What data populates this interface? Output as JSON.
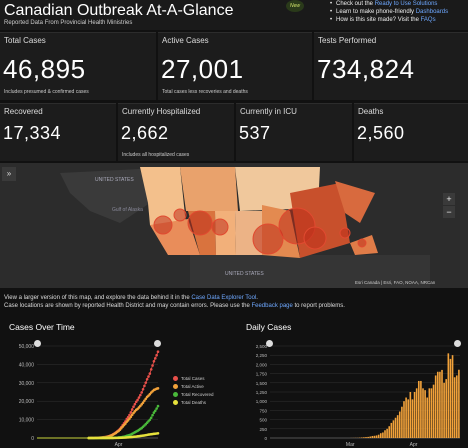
{
  "header": {
    "title": "Canadian Outbreak At-A-Glance",
    "subtitle": "Reported Data From Provincial Health Ministries",
    "new_badge": "New",
    "links": [
      {
        "prefix": "Check out the ",
        "link": "Ready to Use Solutions",
        "suffix": ""
      },
      {
        "prefix": "Learn to make phone-friendly ",
        "link": "Dashboards",
        "suffix": ""
      },
      {
        "prefix": "How is this site made? Visit the ",
        "link": "FAQs",
        "suffix": ""
      }
    ]
  },
  "stats": {
    "total_cases": {
      "label": "Total Cases",
      "value": "46,895",
      "note": "Includes presumed & confirmed cases"
    },
    "active_cases": {
      "label": "Active Cases",
      "value": "27,001",
      "note": "Total cases less recoveries and deaths"
    },
    "tests": {
      "label": "Tests Performed",
      "value": "734,824"
    },
    "recovered": {
      "label": "Recovered",
      "value": "17,334"
    },
    "hospitalized": {
      "label": "Currently Hospitalized",
      "value": "2,662",
      "note": "Includes all hospitalized cases"
    },
    "icu": {
      "label": "Currently in ICU",
      "value": "537"
    },
    "deaths": {
      "label": "Deaths",
      "value": "2,560"
    }
  },
  "map": {
    "labels": [
      "UNITED STATES",
      "Gulf of Alaska",
      "UNITED STATES"
    ],
    "attribution": "Esri Canada | Esri, FAO, NOAA, NRCan",
    "expand_icon": "»",
    "zoom_in": "+",
    "zoom_out": "−"
  },
  "map_caption": {
    "line1_prefix": "View a larger version of this map, and explore the data behind it in the ",
    "line1_link": "Case Data Explorer Tool",
    "line1_suffix": ".",
    "line2_prefix": "Case locations are shown by reported Health District and may contain errors. Please use the ",
    "line2_link": "Feedback page",
    "line2_suffix": " to report problems."
  },
  "colors": {
    "total": "#e8504a",
    "active": "#f2a23a",
    "recovered": "#49b83a",
    "deaths": "#e6e23c",
    "bars": "#f2a23a"
  },
  "chart_data": [
    {
      "type": "line",
      "title": "Cases Over Time",
      "x_ticks": [
        "Apr"
      ],
      "ylim": [
        0,
        50000
      ],
      "y_ticks": [
        0,
        10000,
        20000,
        30000,
        40000,
        50000
      ],
      "y_tick_labels": [
        "0",
        "10,000",
        "20,000",
        "30,000",
        "40,000",
        "50,000"
      ],
      "x": [
        0,
        1,
        2,
        3,
        4,
        5,
        6,
        7,
        8,
        9,
        10,
        11,
        12,
        13,
        14,
        15,
        16,
        17,
        18,
        19,
        20,
        21,
        22,
        23,
        24,
        25,
        26,
        27,
        28,
        29,
        30,
        31,
        32,
        33,
        34,
        35,
        36,
        37,
        38,
        39,
        40,
        41,
        42,
        43,
        44,
        45,
        46,
        47,
        48,
        49,
        50,
        51,
        52,
        53,
        54,
        55,
        56,
        57,
        58,
        59,
        60,
        61,
        62,
        63,
        64,
        65,
        66,
        67,
        68,
        69,
        70,
        71,
        72,
        73,
        74,
        75,
        76,
        77,
        78,
        79,
        80,
        81,
        82,
        83,
        84,
        85,
        86,
        87,
        88,
        89
      ],
      "series": [
        {
          "name": "Total Cases",
          "color": "#e8504a",
          "values": [
            0,
            0,
            0,
            0,
            0,
            0,
            0,
            0,
            0,
            0,
            0,
            0,
            0,
            0,
            0,
            0,
            0,
            0,
            0,
            0,
            0,
            0,
            0,
            0,
            0,
            0,
            0,
            0,
            0,
            0,
            0,
            0,
            0,
            0,
            0,
            0,
            0,
            0,
            0,
            10,
            20,
            30,
            50,
            80,
            110,
            150,
            200,
            260,
            340,
            420,
            500,
            600,
            800,
            1000,
            1300,
            1600,
            2000,
            2500,
            3000,
            3600,
            4200,
            5000,
            5900,
            7000,
            8000,
            9000,
            10300,
            11300,
            12500,
            13900,
            15500,
            17000,
            18400,
            19700,
            20700,
            22000,
            23300,
            24800,
            26500,
            28300,
            30100,
            31900,
            33400,
            35000,
            37300,
            39400,
            41700,
            43300,
            45000,
            46895
          ]
        },
        {
          "name": "Total Active",
          "color": "#f2a23a",
          "values": [
            0,
            0,
            0,
            0,
            0,
            0,
            0,
            0,
            0,
            0,
            0,
            0,
            0,
            0,
            0,
            0,
            0,
            0,
            0,
            0,
            0,
            0,
            0,
            0,
            0,
            0,
            0,
            0,
            0,
            0,
            0,
            0,
            0,
            0,
            0,
            0,
            0,
            0,
            0,
            10,
            20,
            30,
            50,
            80,
            100,
            140,
            190,
            240,
            310,
            390,
            470,
            560,
            750,
            930,
            1200,
            1500,
            1850,
            2300,
            2750,
            3300,
            3800,
            4500,
            5300,
            6200,
            7000,
            7800,
            8800,
            9600,
            10500,
            11500,
            12600,
            13600,
            14500,
            15300,
            15800,
            16600,
            17400,
            18300,
            19200,
            20300,
            21300,
            22300,
            23000,
            23800,
            24700,
            25400,
            26100,
            26400,
            26800,
            27001
          ]
        },
        {
          "name": "Total Recovered",
          "color": "#49b83a",
          "values": [
            0,
            0,
            0,
            0,
            0,
            0,
            0,
            0,
            0,
            0,
            0,
            0,
            0,
            0,
            0,
            0,
            0,
            0,
            0,
            0,
            0,
            0,
            0,
            0,
            0,
            0,
            0,
            0,
            0,
            0,
            0,
            0,
            0,
            0,
            0,
            0,
            0,
            0,
            0,
            0,
            0,
            0,
            0,
            0,
            0,
            5,
            5,
            10,
            20,
            20,
            20,
            30,
            40,
            50,
            70,
            80,
            100,
            130,
            160,
            200,
            280,
            350,
            450,
            600,
            750,
            900,
            1200,
            1400,
            1600,
            1900,
            2300,
            2700,
            3100,
            3500,
            3900,
            4400,
            4900,
            5400,
            6100,
            6800,
            7500,
            8300,
            9100,
            9900,
            11000,
            12400,
            13800,
            14800,
            16000,
            17334
          ]
        },
        {
          "name": "Total Deaths",
          "color": "#e6e23c",
          "values": [
            0,
            0,
            0,
            0,
            0,
            0,
            0,
            0,
            0,
            0,
            0,
            0,
            0,
            0,
            0,
            0,
            0,
            0,
            0,
            0,
            0,
            0,
            0,
            0,
            0,
            0,
            0,
            0,
            0,
            0,
            0,
            0,
            0,
            0,
            0,
            0,
            0,
            0,
            0,
            0,
            0,
            0,
            0,
            0,
            0,
            1,
            1,
            1,
            1,
            2,
            4,
            8,
            10,
            13,
            18,
            24,
            30,
            40,
            50,
            65,
            90,
            110,
            140,
            170,
            200,
            250,
            300,
            350,
            420,
            500,
            570,
            650,
            730,
            800,
            900,
            1000,
            1100,
            1200,
            1300,
            1400,
            1550,
            1700,
            1850,
            1950,
            2050,
            2150,
            2250,
            2350,
            2450,
            2560
          ]
        }
      ]
    },
    {
      "type": "bar",
      "title": "Daily Cases",
      "x_ticks": [
        "Mar",
        "Apr"
      ],
      "ylim": [
        0,
        2500
      ],
      "y_ticks": [
        0,
        250,
        500,
        750,
        1000,
        1250,
        1500,
        1750,
        2000,
        2250,
        2500
      ],
      "y_tick_labels": [
        "0",
        "250",
        "500",
        "750",
        "1,000",
        "1,250",
        "1,500",
        "1,750",
        "2,000",
        "2,250",
        "2,500"
      ],
      "values": [
        0,
        0,
        0,
        0,
        0,
        0,
        0,
        0,
        0,
        0,
        0,
        0,
        0,
        0,
        0,
        0,
        0,
        0,
        0,
        0,
        0,
        0,
        0,
        0,
        0,
        0,
        0,
        0,
        0,
        0,
        0,
        0,
        0,
        0,
        0,
        0,
        0,
        0,
        2,
        3,
        5,
        5,
        10,
        15,
        20,
        25,
        30,
        40,
        55,
        60,
        70,
        90,
        130,
        150,
        210,
        250,
        320,
        410,
        480,
        550,
        620,
        720,
        850,
        1000,
        1100,
        1050,
        1250,
        1050,
        1250,
        1350,
        1550,
        1550,
        1350,
        1300,
        1100,
        1350,
        1350,
        1450,
        1700,
        1800,
        1800,
        1850,
        1500,
        1600,
        2300,
        2150,
        2250,
        1650,
        1700,
        1855
      ],
      "series": [
        {
          "values": []
        }
      ]
    }
  ]
}
